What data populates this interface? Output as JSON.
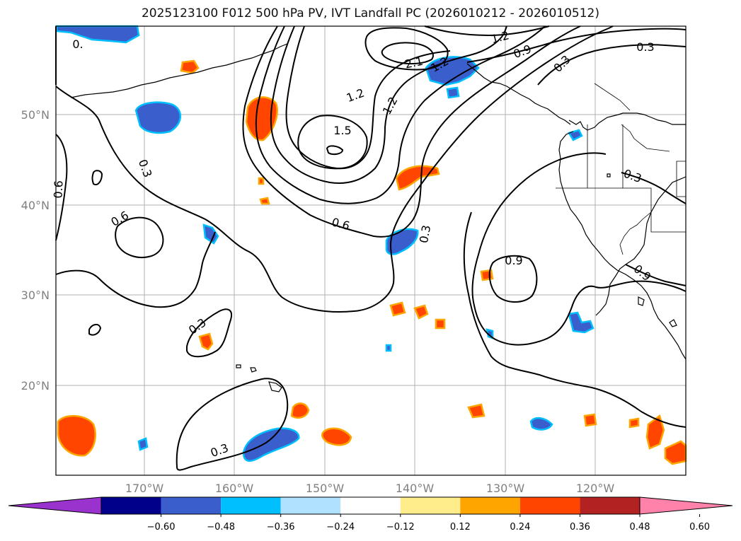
{
  "title": "2025123100 F012 500 hPa PV, IVT Landfall PC (2026010212 - 2026010512)",
  "lat_labels": [
    "50°N",
    "40°N",
    "30°N",
    "20°N"
  ],
  "lon_labels": [
    "170°W",
    "160°W",
    "150°W",
    "140°W",
    "130°W",
    "120°W"
  ],
  "contour_labels": [
    "0.3",
    "0.3",
    "0.3",
    "0.3",
    "0.3",
    "0.3",
    "0.3",
    "0.6",
    "0.6",
    "0.6",
    "0.9",
    "0.9",
    "0.9",
    "1.2",
    "1.2",
    "1.2",
    "1.5",
    "2.1",
    "0."
  ],
  "colorbar": {
    "ticks": [
      "−0.60",
      "−0.48",
      "−0.36",
      "−0.24",
      "−0.12",
      "0.12",
      "0.24",
      "0.36",
      "0.48",
      "0.60"
    ],
    "colors": [
      "#9a32cd",
      "#00008b",
      "#3a5fcd",
      "#00bfff",
      "#b0e2ff",
      "#ffffff",
      "#ffec8b",
      "#ffa500",
      "#ff4500",
      "#b22222",
      "#ff82ab"
    ]
  },
  "colors": {
    "contour": "#000000",
    "coast": "#000000",
    "grid": "#b0b0b0",
    "blue_fill": "#3a5fcd",
    "blue_edge": "#00bfff",
    "red_fill": "#ff4500",
    "red_edge": "#ffa500"
  }
}
